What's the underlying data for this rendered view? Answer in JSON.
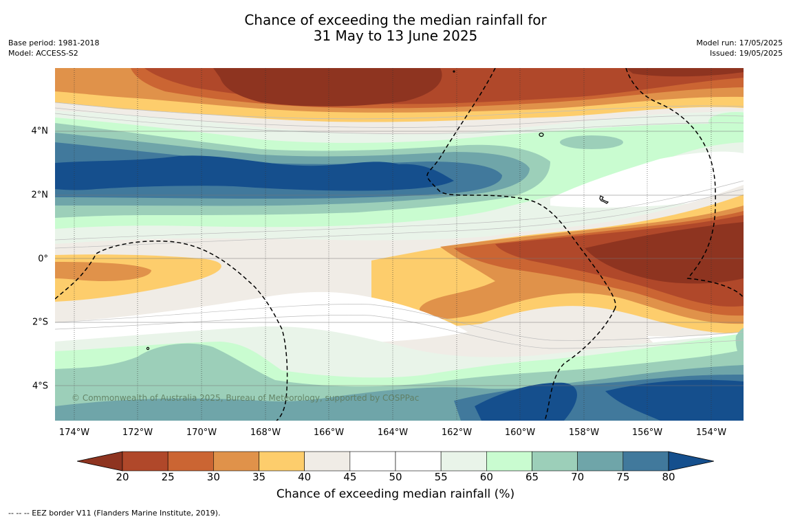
{
  "title": {
    "line1": "Chance of exceeding the median rainfall for",
    "line2": "31 May to 13 June 2025"
  },
  "meta_left": {
    "base_period": "Base period: 1981-2018",
    "model": "Model: ACCESS-S2"
  },
  "meta_right": {
    "model_run": "Model run: 17/05/2025",
    "issued": "Issued: 19/05/2025"
  },
  "map": {
    "lon_range": [
      -174.6,
      -152.9
    ],
    "lat_range": [
      -5.2,
      5.9
    ],
    "longitude_ticks": [
      {
        "value": -174,
        "label": "174°W"
      },
      {
        "value": -172,
        "label": "172°W"
      },
      {
        "value": -170,
        "label": "170°W"
      },
      {
        "value": -168,
        "label": "168°W"
      },
      {
        "value": -166,
        "label": "166°W"
      },
      {
        "value": -164,
        "label": "164°W"
      },
      {
        "value": -162,
        "label": "162°W"
      },
      {
        "value": -160,
        "label": "160°W"
      },
      {
        "value": -158,
        "label": "158°W"
      },
      {
        "value": -156,
        "label": "156°W"
      },
      {
        "value": -154,
        "label": "154°W"
      }
    ],
    "latitude_ticks": [
      {
        "value": 4,
        "label": "4°N"
      },
      {
        "value": 2,
        "label": "2°N"
      },
      {
        "value": 0,
        "label": "0°"
      },
      {
        "value": -2,
        "label": "2°S"
      },
      {
        "value": -4,
        "label": "4°S"
      }
    ],
    "copyright": "© Commonwealth of Australia 2025, Bureau of Meteorology, supported by COSPPac"
  },
  "colorbar": {
    "levels": [
      "20",
      "25",
      "30",
      "35",
      "40",
      "45",
      "50",
      "55",
      "60",
      "65",
      "70",
      "75",
      "80"
    ],
    "colors": [
      "#8e3420",
      "#b0482a",
      "#cb6533",
      "#e0924a",
      "#fdcd6c",
      "#f0ece6",
      "#ffffff",
      "#ffffff",
      "#e9f4e9",
      "#c9fcd0",
      "#9ccfb9",
      "#6fa5a9",
      "#41799c",
      "#154f8d"
    ],
    "title": "Chance of exceeding median rainfall (%)"
  },
  "footer": "--  --  -- EEZ border V11 (Flanders Marine Institute, 2019)."
}
